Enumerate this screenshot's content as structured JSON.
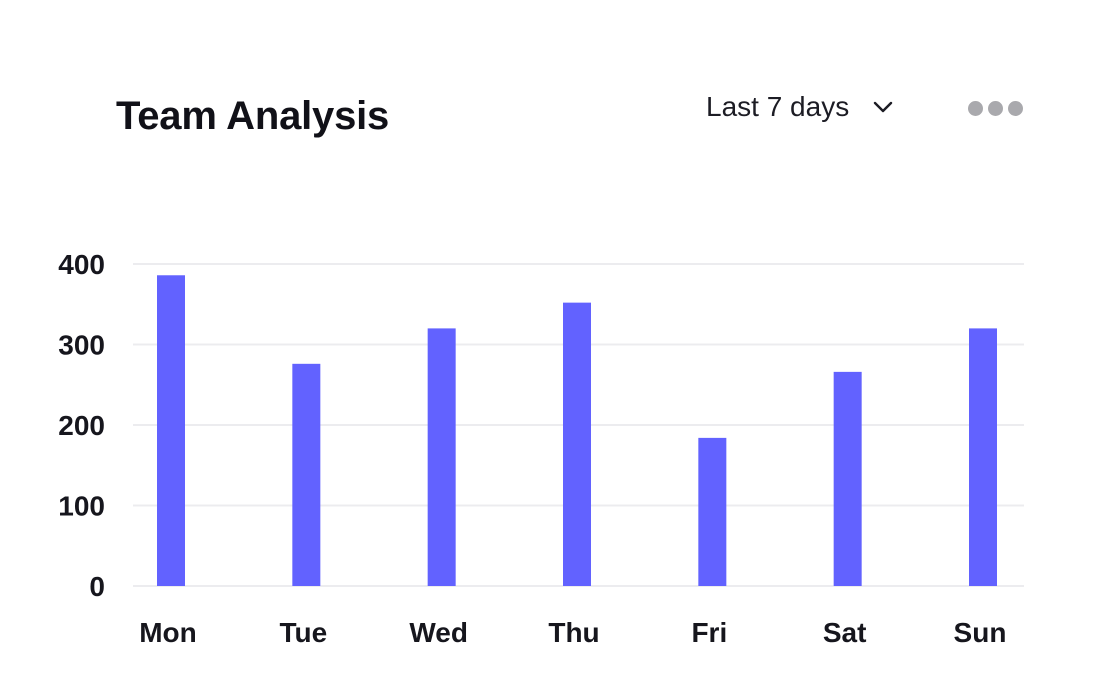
{
  "header": {
    "title": "Team Analysis",
    "range_label": "Last 7 days"
  },
  "icons": {
    "range_dropdown": "chevron-down-icon",
    "more_menu": "more-horizontal-icon"
  },
  "colors": {
    "bar": "#6262FF",
    "title": "#111118",
    "dots": "#A9A9AD",
    "gridline": "#ECECEF"
  },
  "chart_data": {
    "type": "bar",
    "title": "Team Analysis",
    "xlabel": "",
    "ylabel": "",
    "categories": [
      "Mon",
      "Tue",
      "Wed",
      "Thu",
      "Fri",
      "Sat",
      "Sun"
    ],
    "values": [
      386,
      276,
      320,
      352,
      184,
      266,
      320
    ],
    "yticks": [
      0,
      100,
      200,
      300,
      400
    ],
    "ylim": [
      0,
      400
    ],
    "grid": true,
    "legend": "none"
  }
}
